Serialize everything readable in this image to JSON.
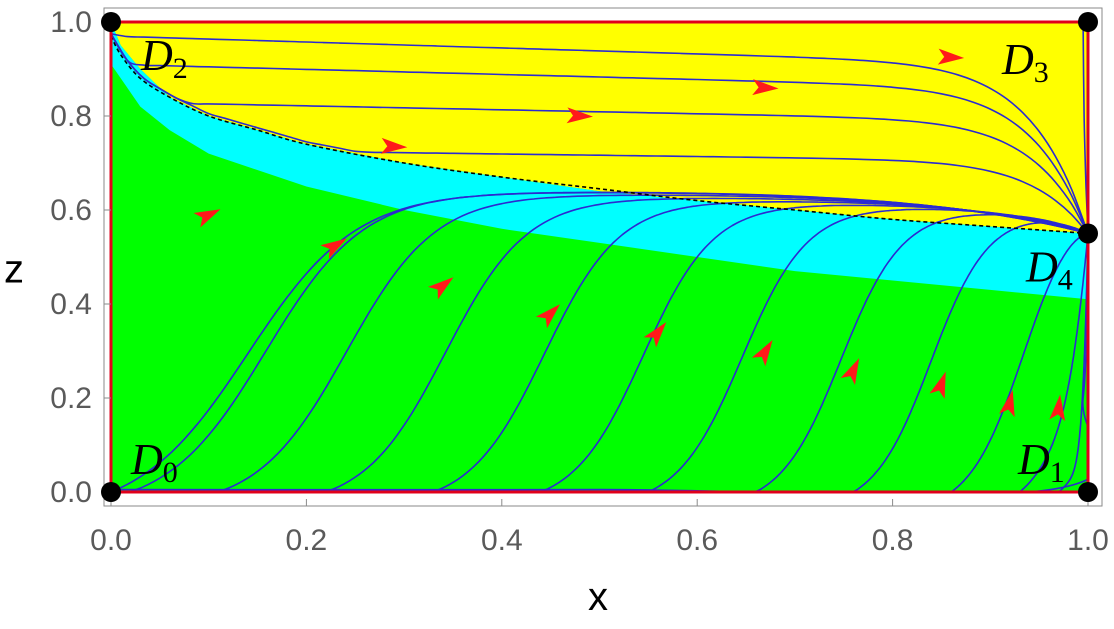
{
  "chart_data": {
    "type": "streamplot",
    "title": "",
    "xlabel": "x",
    "ylabel": "z",
    "xlim": [
      0,
      1
    ],
    "ylim": [
      0,
      1
    ],
    "xticks": [
      "0.0",
      "0.2",
      "0.4",
      "0.6",
      "0.8",
      "1.0"
    ],
    "yticks": [
      "0.0",
      "0.2",
      "0.4",
      "0.6",
      "0.8",
      "1.0"
    ],
    "xtick_values": [
      0,
      0.2,
      0.4,
      0.6,
      0.8,
      1.0
    ],
    "ytick_values": [
      0,
      0.2,
      0.4,
      0.6,
      0.8,
      1.0
    ],
    "grid": false,
    "colors": {
      "yellow_region": "#ffff00",
      "cyan_region": "#00ffff",
      "green_region": "#00ff00",
      "trajectory": "#2b2bd0",
      "arrow": "#ff1a1a",
      "boundary": "#e0001b",
      "critical_point": "#000000"
    },
    "regions": {
      "upper_boundary": [
        [
          0,
          1.0
        ],
        [
          0.01,
          0.95
        ],
        [
          0.03,
          0.9
        ],
        [
          0.06,
          0.84
        ],
        [
          0.1,
          0.8
        ],
        [
          0.2,
          0.74
        ],
        [
          0.3,
          0.7
        ],
        [
          0.4,
          0.67
        ],
        [
          0.5,
          0.64
        ],
        [
          0.6,
          0.62
        ],
        [
          0.7,
          0.6
        ],
        [
          0.8,
          0.58
        ],
        [
          0.9,
          0.565
        ],
        [
          1.0,
          0.55
        ]
      ],
      "lower_boundary": [
        [
          0,
          0.91
        ],
        [
          0.01,
          0.88
        ],
        [
          0.03,
          0.82
        ],
        [
          0.06,
          0.77
        ],
        [
          0.1,
          0.72
        ],
        [
          0.2,
          0.65
        ],
        [
          0.3,
          0.6
        ],
        [
          0.4,
          0.56
        ],
        [
          0.5,
          0.53
        ],
        [
          0.6,
          0.5
        ],
        [
          0.7,
          0.47
        ],
        [
          0.8,
          0.45
        ],
        [
          0.9,
          0.43
        ],
        [
          1.0,
          0.41
        ]
      ]
    },
    "critical_points": [
      {
        "name": "D",
        "sub": "0",
        "x": 0,
        "y": 0
      },
      {
        "name": "D",
        "sub": "1",
        "x": 1,
        "y": 0
      },
      {
        "name": "D",
        "sub": "2",
        "x": 0,
        "y": 1
      },
      {
        "name": "D",
        "sub": "3",
        "x": 1,
        "y": 1
      },
      {
        "name": "D",
        "sub": "4",
        "x": 1,
        "y": 0.55
      }
    ],
    "upper_trajectory_start_z": [
      0.97,
      0.91,
      0.83,
      0.73
    ],
    "upper_trajectory_arrows": [
      {
        "x": 0.86,
        "z": 0.925
      },
      {
        "x": 0.67,
        "z": 0.86
      },
      {
        "x": 0.48,
        "z": 0.8
      },
      {
        "x": 0.29,
        "z": 0.735
      }
    ],
    "lower_trajectory_start_x": [
      0.0,
      0.02,
      0.11,
      0.22,
      0.33,
      0.44,
      0.55,
      0.66,
      0.76,
      0.86,
      0.93,
      0.97
    ],
    "lower_trajectory_arrows": [
      {
        "x": 0.1,
        "z": 0.59
      },
      {
        "x": 0.23,
        "z": 0.525
      },
      {
        "x": 0.34,
        "z": 0.44
      },
      {
        "x": 0.45,
        "z": 0.38
      },
      {
        "x": 0.56,
        "z": 0.34
      },
      {
        "x": 0.67,
        "z": 0.3
      },
      {
        "x": 0.76,
        "z": 0.26
      },
      {
        "x": 0.85,
        "z": 0.23
      },
      {
        "x": 0.92,
        "z": 0.19
      },
      {
        "x": 0.97,
        "z": 0.18
      }
    ],
    "separatrix": [
      [
        0,
        0.97
      ],
      [
        0.01,
        0.93
      ],
      [
        0.03,
        0.88
      ],
      [
        0.06,
        0.84
      ],
      [
        0.1,
        0.8
      ],
      [
        0.15,
        0.77
      ],
      [
        0.2,
        0.74
      ],
      [
        0.3,
        0.7
      ],
      [
        0.4,
        0.67
      ],
      [
        0.5,
        0.645
      ],
      [
        0.6,
        0.62
      ],
      [
        0.7,
        0.6
      ],
      [
        0.8,
        0.58
      ],
      [
        0.9,
        0.565
      ],
      [
        1.0,
        0.55
      ]
    ]
  }
}
